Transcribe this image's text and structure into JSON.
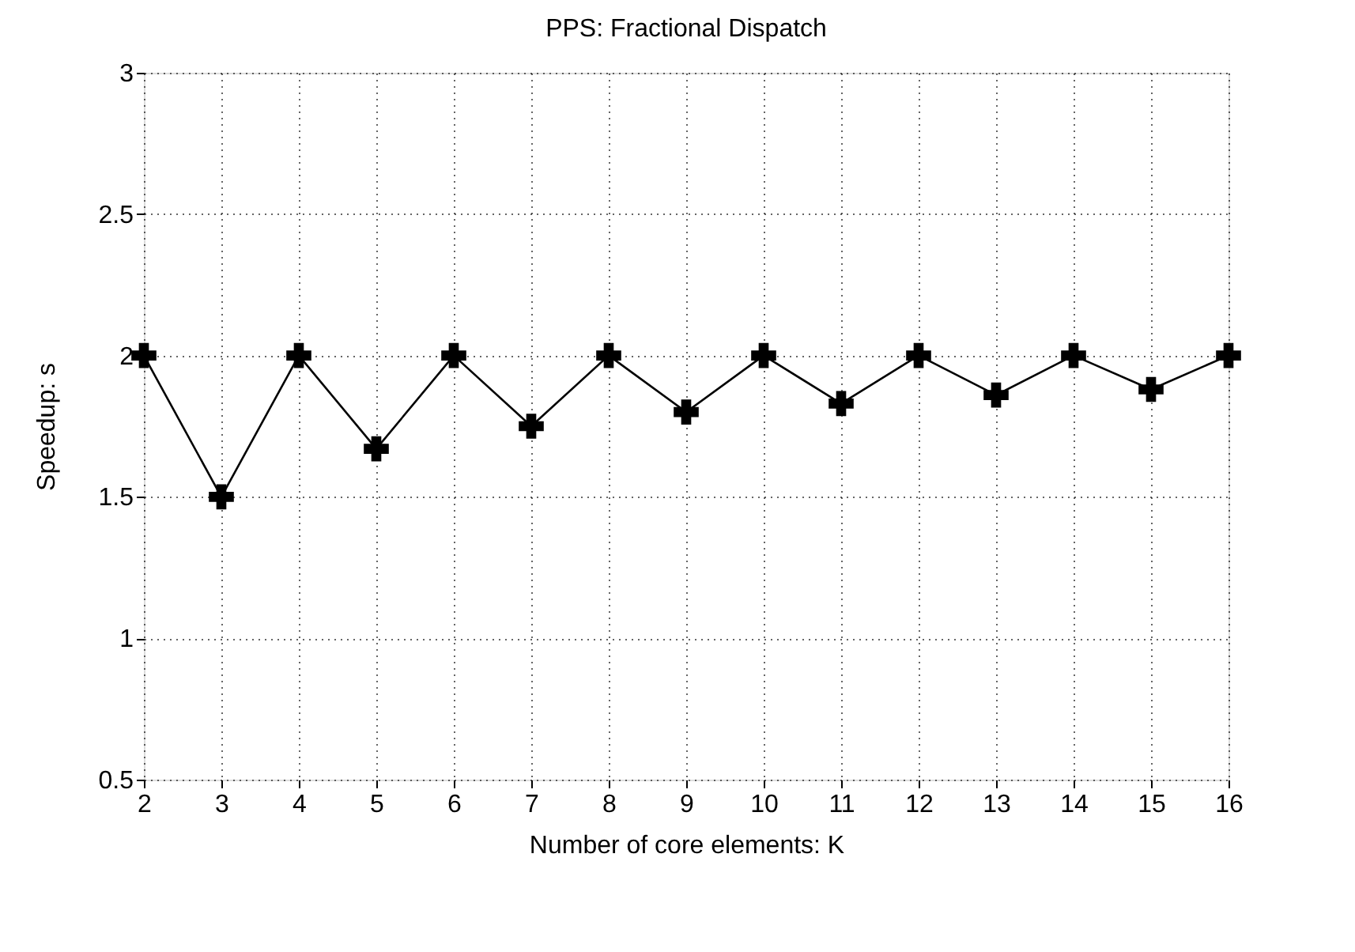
{
  "chart_data": {
    "type": "line",
    "title": "PPS: Fractional Dispatch",
    "xlabel": "Number of core elements: K",
    "ylabel": "Speedup: s",
    "x": [
      2,
      3,
      4,
      5,
      6,
      7,
      8,
      9,
      10,
      11,
      12,
      13,
      14,
      15,
      16
    ],
    "series": [
      {
        "color": "#000000",
        "values": [
          2,
          1.5,
          2,
          1.67,
          2,
          1.75,
          2,
          1.8,
          2,
          1.83,
          2,
          1.86,
          2,
          1.88,
          2
        ]
      }
    ],
    "xlim": [
      2,
      16
    ],
    "xticks": [
      2,
      3,
      4,
      5,
      6,
      7,
      8,
      9,
      10,
      11,
      12,
      13,
      14,
      15,
      16
    ],
    "ylim": [
      0.5,
      3
    ],
    "yticks": [
      0.5,
      1,
      1.5,
      2,
      2.5,
      3
    ],
    "grid": true,
    "marker": "cross",
    "line_style": "solid"
  }
}
